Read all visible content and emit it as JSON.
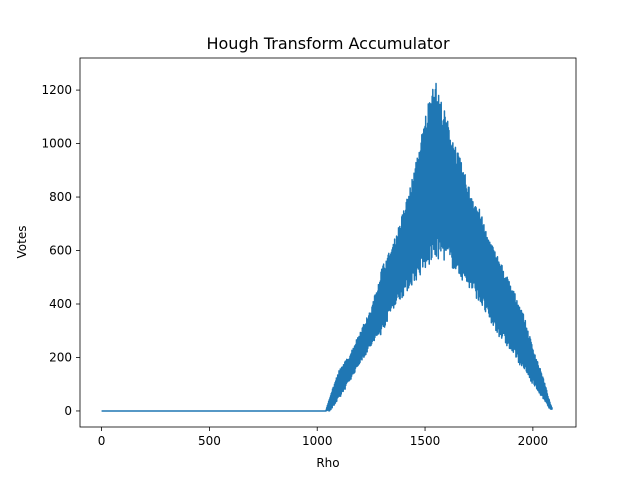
{
  "chart_data": {
    "type": "line",
    "title": "Hough Transform Accumulator",
    "xlabel": "Rho",
    "ylabel": "Votes",
    "xlim": [
      -100,
      2200
    ],
    "ylim": [
      -60,
      1320
    ],
    "xticks": [
      0,
      500,
      1000,
      1500,
      2000
    ],
    "yticks": [
      0,
      200,
      400,
      600,
      800,
      1000,
      1200
    ],
    "grid": false,
    "legend": "none",
    "series": [
      {
        "color": "#1f77b4",
        "x": [
          0,
          1040,
          1060,
          1100,
          1150,
          1200,
          1250,
          1300,
          1350,
          1400,
          1450,
          1500,
          1540,
          1580,
          1620,
          1660,
          1700,
          1750,
          1800,
          1850,
          1900,
          1950,
          2000,
          2050,
          2080,
          2090
        ],
        "upper": [
          0,
          0,
          60,
          150,
          210,
          300,
          380,
          540,
          620,
          750,
          900,
          1100,
          1260,
          1150,
          1050,
          950,
          850,
          760,
          640,
          560,
          470,
          380,
          240,
          120,
          30,
          10
        ],
        "lower": [
          0,
          0,
          0,
          40,
          110,
          180,
          240,
          290,
          380,
          430,
          480,
          520,
          560,
          570,
          540,
          500,
          460,
          410,
          330,
          270,
          220,
          160,
          100,
          40,
          5,
          5
        ]
      }
    ]
  }
}
